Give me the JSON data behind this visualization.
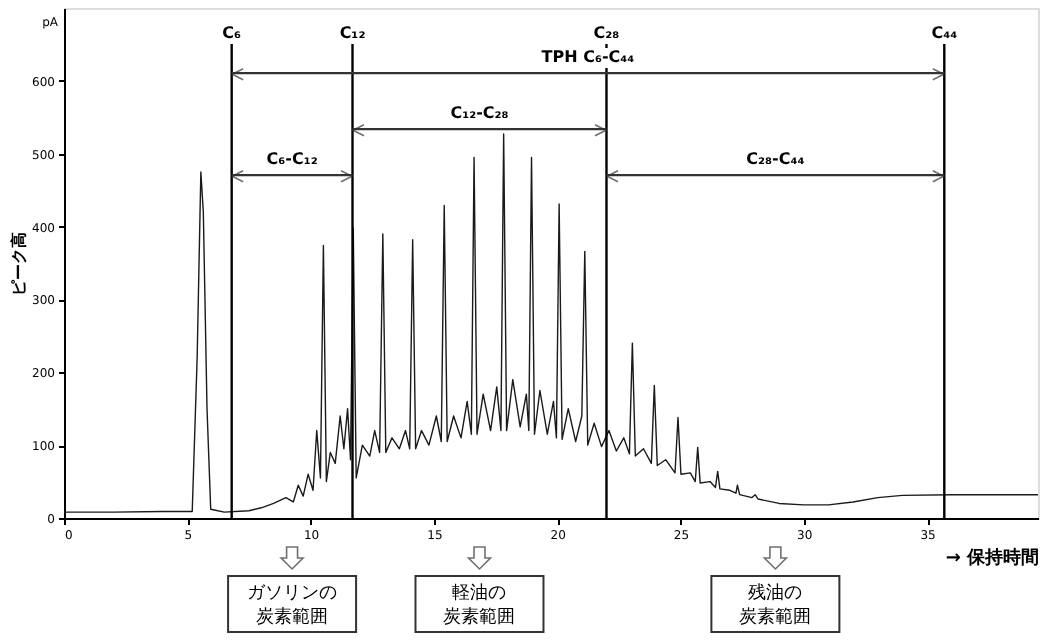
{
  "chart_data": {
    "type": "line",
    "xlabel": "→ 保持時間",
    "ylabel": "ピーク高",
    "xlim": [
      0,
      39.5
    ],
    "xticks": [
      0,
      5,
      10,
      15,
      20,
      25,
      30,
      35
    ],
    "ylim": [
      0,
      700
    ],
    "yticks": [
      0,
      100,
      200,
      300,
      400,
      500,
      600
    ],
    "grid": false,
    "series": [
      {
        "color": "#1a1a1a",
        "x": [
          0,
          2,
          4,
          5.2,
          5.4,
          5.55,
          5.65,
          5.8,
          5.95,
          6.5,
          7.5,
          8,
          8.5,
          9,
          9.3,
          9.5,
          9.7,
          9.9,
          10.1,
          10.25,
          10.4,
          10.52,
          10.64,
          10.8,
          11,
          11.2,
          11.35,
          11.5,
          11.62,
          11.73,
          11.85,
          12.1,
          12.4,
          12.6,
          12.8,
          12.93,
          13.05,
          13.3,
          13.6,
          13.85,
          14.02,
          14.14,
          14.26,
          14.5,
          14.8,
          15.1,
          15.3,
          15.42,
          15.54,
          15.8,
          16.1,
          16.35,
          16.52,
          16.63,
          16.75,
          17.0,
          17.3,
          17.55,
          17.72,
          17.83,
          17.95,
          18.2,
          18.5,
          18.75,
          18.85,
          18.96,
          19.08,
          19.3,
          19.6,
          19.85,
          19.97,
          20.08,
          20.2,
          20.45,
          20.75,
          21.0,
          21.12,
          21.24,
          21.5,
          21.8,
          22.1,
          22.4,
          22.7,
          22.93,
          23.05,
          23.17,
          23.5,
          23.82,
          23.94,
          24.06,
          24.4,
          24.78,
          24.9,
          25.02,
          25.4,
          25.6,
          25.7,
          25.8,
          26.2,
          26.42,
          26.51,
          26.6,
          27.0,
          27.25,
          27.31,
          27.4,
          27.9,
          28.03,
          28.15,
          29,
          30,
          31,
          32,
          33,
          34,
          36,
          38,
          39.5
        ],
        "values": [
          8,
          8,
          9,
          9,
          220,
          475,
          420,
          150,
          12,
          8,
          10,
          14,
          20,
          28,
          22,
          45,
          30,
          60,
          38,
          120,
          55,
          374,
          50,
          90,
          75,
          140,
          95,
          150,
          80,
          398,
          55,
          100,
          85,
          120,
          90,
          390,
          90,
          110,
          95,
          120,
          95,
          382,
          95,
          120,
          100,
          140,
          105,
          429,
          105,
          140,
          110,
          160,
          115,
          495,
          115,
          170,
          120,
          180,
          120,
          527,
          120,
          190,
          125,
          170,
          120,
          495,
          115,
          175,
          115,
          160,
          110,
          431,
          108,
          150,
          105,
          140,
          366,
          100,
          130,
          98,
          120,
          92,
          110,
          88,
          240,
          85,
          95,
          75,
          182,
          72,
          80,
          62,
          138,
          60,
          62,
          50,
          97,
          48,
          50,
          42,
          64,
          40,
          38,
          34,
          45,
          32,
          28,
          32,
          26,
          20,
          18,
          18,
          22,
          28,
          31,
          32,
          32,
          32
        ]
      }
    ],
    "ref_lines": [
      {
        "axis": "x",
        "value": 6.8,
        "label": "C₆"
      },
      {
        "axis": "x",
        "value": 11.7,
        "label": "C₁₂"
      },
      {
        "axis": "x",
        "value": 22.0,
        "label": "C₂₈"
      },
      {
        "axis": "x",
        "value": 35.7,
        "label": "C₄₄"
      }
    ],
    "annotations": [
      "TPH  C₆-C₄₄",
      "C₆-C₁₂",
      "C₁₂-C₂₈",
      "C₂₈-C₄₄",
      "ガソリンの炭素範囲",
      "軽油の炭素範囲",
      "残油の炭素範囲",
      "pA"
    ]
  }
}
